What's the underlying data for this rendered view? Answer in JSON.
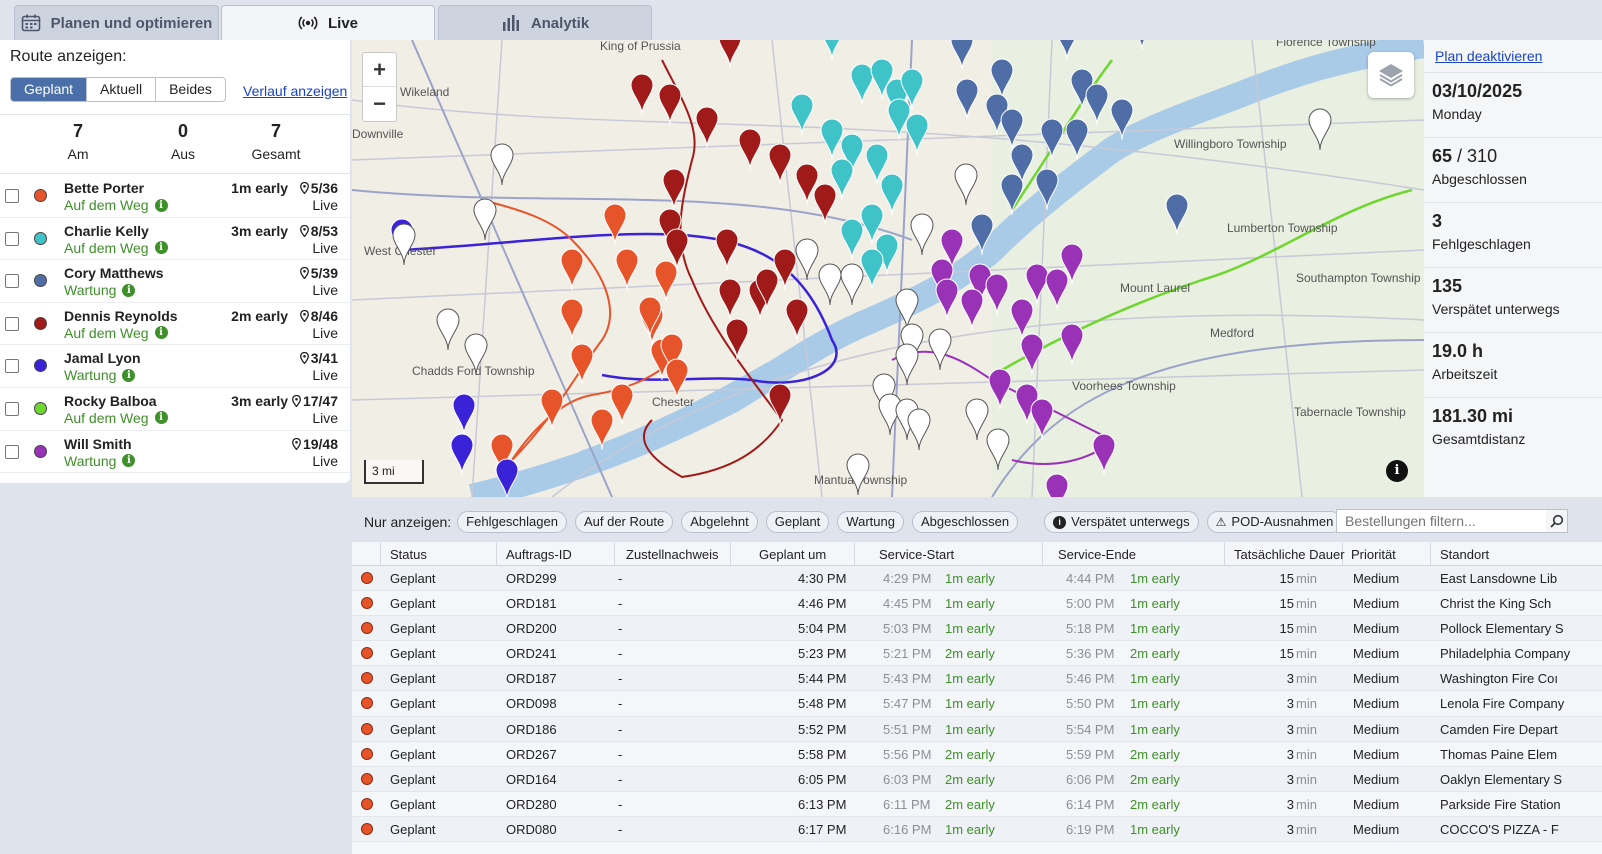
{
  "tabs": [
    {
      "label": "Planen und optimieren",
      "icon": "calendar-icon"
    },
    {
      "label": "Live",
      "icon": "broadcast-icon"
    },
    {
      "label": "Analytik",
      "icon": "bar-chart-icon"
    }
  ],
  "left": {
    "route_label": "Route anzeigen:",
    "segments": [
      "Geplant",
      "Aktuell",
      "Beides"
    ],
    "history_link": "Verlauf anzeigen",
    "stats": [
      {
        "value": "7",
        "label": "Am"
      },
      {
        "value": "0",
        "label": "Aus"
      },
      {
        "value": "7",
        "label": "Gesamt"
      }
    ],
    "drivers": [
      {
        "name": "Bette Porter",
        "status": "Auf dem Weg",
        "early": "1m early",
        "count": "5/36",
        "live": "Live",
        "color": "#e8542a"
      },
      {
        "name": "Charlie Kelly",
        "status": "Auf dem Weg",
        "early": "3m early",
        "count": "8/53",
        "live": "Live",
        "color": "#3fc3c8"
      },
      {
        "name": "Cory Matthews",
        "status": "Wartung",
        "early": "",
        "count": "5/39",
        "live": "Live",
        "color": "#4f6ea8"
      },
      {
        "name": "Dennis Reynolds",
        "status": "Auf dem Weg",
        "early": "2m early",
        "count": "8/46",
        "live": "Live",
        "color": "#a11a1a"
      },
      {
        "name": "Jamal Lyon",
        "status": "Wartung",
        "early": "",
        "count": "3/41",
        "live": "Live",
        "color": "#3a22d8"
      },
      {
        "name": "Rocky Balboa",
        "status": "Auf dem Weg",
        "early": "3m early",
        "count": "17/47",
        "live": "Live",
        "color": "#6ed62e"
      },
      {
        "name": "Will Smith",
        "status": "Wartung",
        "early": "",
        "count": "19/48",
        "live": "Live",
        "color": "#9a32b8"
      }
    ]
  },
  "map": {
    "scale": "3 mi",
    "places": [
      "Wikeland",
      "Downville",
      "King of Prussia",
      "West Chester",
      "Chadds Ford Township",
      "Chester",
      "Mantua Township",
      "Voorhees Township",
      "Mount Laurel",
      "Medford",
      "Tabernacle Township",
      "Lumberton Township",
      "Southampton Township",
      "Willingboro Township",
      "Florence Township"
    ],
    "route_colors": {
      "bette": "#e8542a",
      "charlie": "#3fc3c8",
      "cory": "#4f6ea8",
      "dennis": "#a11a1a",
      "jamal": "#3a22d8",
      "rocky": "#6ed62e",
      "will": "#9a32b8"
    }
  },
  "right": {
    "plan_link": "Plan deaktivieren",
    "date": "03/10/2025",
    "weekday": "Monday",
    "completed_num": "65",
    "completed_total": "/ 310",
    "completed_label": "Abgeschlossen",
    "failed": "3",
    "failed_label": "Fehlgeschlagen",
    "late": "135",
    "late_label": "Verspätet unterwegs",
    "hours": "19.0 h",
    "hours_label": "Arbeitszeit",
    "distance": "181.30 mi",
    "distance_label": "Gesamtdistanz"
  },
  "filter": {
    "label": "Nur anzeigen:",
    "chips": [
      "Fehlgeschlagen",
      "Auf der Route",
      "Abgelehnt",
      "Geplant",
      "Wartung",
      "Abgeschlossen"
    ],
    "late_chip": "Verspätet unterwegs",
    "pod_chip": "POD-Ausnahmen",
    "search_placeholder": "Bestellungen filtern..."
  },
  "table": {
    "headers": [
      "Status",
      "Auftrags-ID",
      "Zustellnachweis",
      "Geplant um",
      "Service-Start",
      "Service-Ende",
      "Tatsächliche Dauer",
      "Priorität",
      "Standort"
    ],
    "rows": [
      {
        "status": "Geplant",
        "id": "ORD299",
        "pod": "-",
        "planned": "4:30 PM",
        "start": "4:29 PM",
        "start_early": "1m early",
        "end": "4:44 PM",
        "end_early": "1m early",
        "dur": "15",
        "unit": "min",
        "prio": "Medium",
        "loc": "East Lansdowne Lib"
      },
      {
        "status": "Geplant",
        "id": "ORD181",
        "pod": "-",
        "planned": "4:46 PM",
        "start": "4:45 PM",
        "start_early": "1m early",
        "end": "5:00 PM",
        "end_early": "1m early",
        "dur": "15",
        "unit": "min",
        "prio": "Medium",
        "loc": "Christ the King Sch"
      },
      {
        "status": "Geplant",
        "id": "ORD200",
        "pod": "-",
        "planned": "5:04 PM",
        "start": "5:03 PM",
        "start_early": "1m early",
        "end": "5:18 PM",
        "end_early": "1m early",
        "dur": "15",
        "unit": "min",
        "prio": "Medium",
        "loc": "Pollock Elementary S"
      },
      {
        "status": "Geplant",
        "id": "ORD241",
        "pod": "-",
        "planned": "5:23 PM",
        "start": "5:21 PM",
        "start_early": "2m early",
        "end": "5:36 PM",
        "end_early": "2m early",
        "dur": "15",
        "unit": "min",
        "prio": "Medium",
        "loc": "Philadelphia Company"
      },
      {
        "status": "Geplant",
        "id": "ORD187",
        "pod": "-",
        "planned": "5:44 PM",
        "start": "5:43 PM",
        "start_early": "1m early",
        "end": "5:46 PM",
        "end_early": "1m early",
        "dur": "3",
        "unit": "min",
        "prio": "Medium",
        "loc": "Washington Fire Coı"
      },
      {
        "status": "Geplant",
        "id": "ORD098",
        "pod": "-",
        "planned": "5:48 PM",
        "start": "5:47 PM",
        "start_early": "1m early",
        "end": "5:50 PM",
        "end_early": "1m early",
        "dur": "3",
        "unit": "min",
        "prio": "Medium",
        "loc": "Lenola Fire Company"
      },
      {
        "status": "Geplant",
        "id": "ORD186",
        "pod": "-",
        "planned": "5:52 PM",
        "start": "5:51 PM",
        "start_early": "1m early",
        "end": "5:54 PM",
        "end_early": "1m early",
        "dur": "3",
        "unit": "min",
        "prio": "Medium",
        "loc": "Camden Fire Depart"
      },
      {
        "status": "Geplant",
        "id": "ORD267",
        "pod": "-",
        "planned": "5:58 PM",
        "start": "5:56 PM",
        "start_early": "2m early",
        "end": "5:59 PM",
        "end_early": "2m early",
        "dur": "3",
        "unit": "min",
        "prio": "Medium",
        "loc": "Thomas Paine Elem"
      },
      {
        "status": "Geplant",
        "id": "ORD164",
        "pod": "-",
        "planned": "6:05 PM",
        "start": "6:03 PM",
        "start_early": "2m early",
        "end": "6:06 PM",
        "end_early": "2m early",
        "dur": "3",
        "unit": "min",
        "prio": "Medium",
        "loc": "Oaklyn Elementary S"
      },
      {
        "status": "Geplant",
        "id": "ORD280",
        "pod": "-",
        "planned": "6:13 PM",
        "start": "6:11 PM",
        "start_early": "2m early",
        "end": "6:14 PM",
        "end_early": "2m early",
        "dur": "3",
        "unit": "min",
        "prio": "Medium",
        "loc": "Parkside Fire Station"
      },
      {
        "status": "Geplant",
        "id": "ORD080",
        "pod": "-",
        "planned": "6:17 PM",
        "start": "6:16 PM",
        "start_early": "1m early",
        "end": "6:19 PM",
        "end_early": "1m early",
        "dur": "3",
        "unit": "min",
        "prio": "Medium",
        "loc": "COCCO'S PIZZA - F"
      }
    ]
  }
}
